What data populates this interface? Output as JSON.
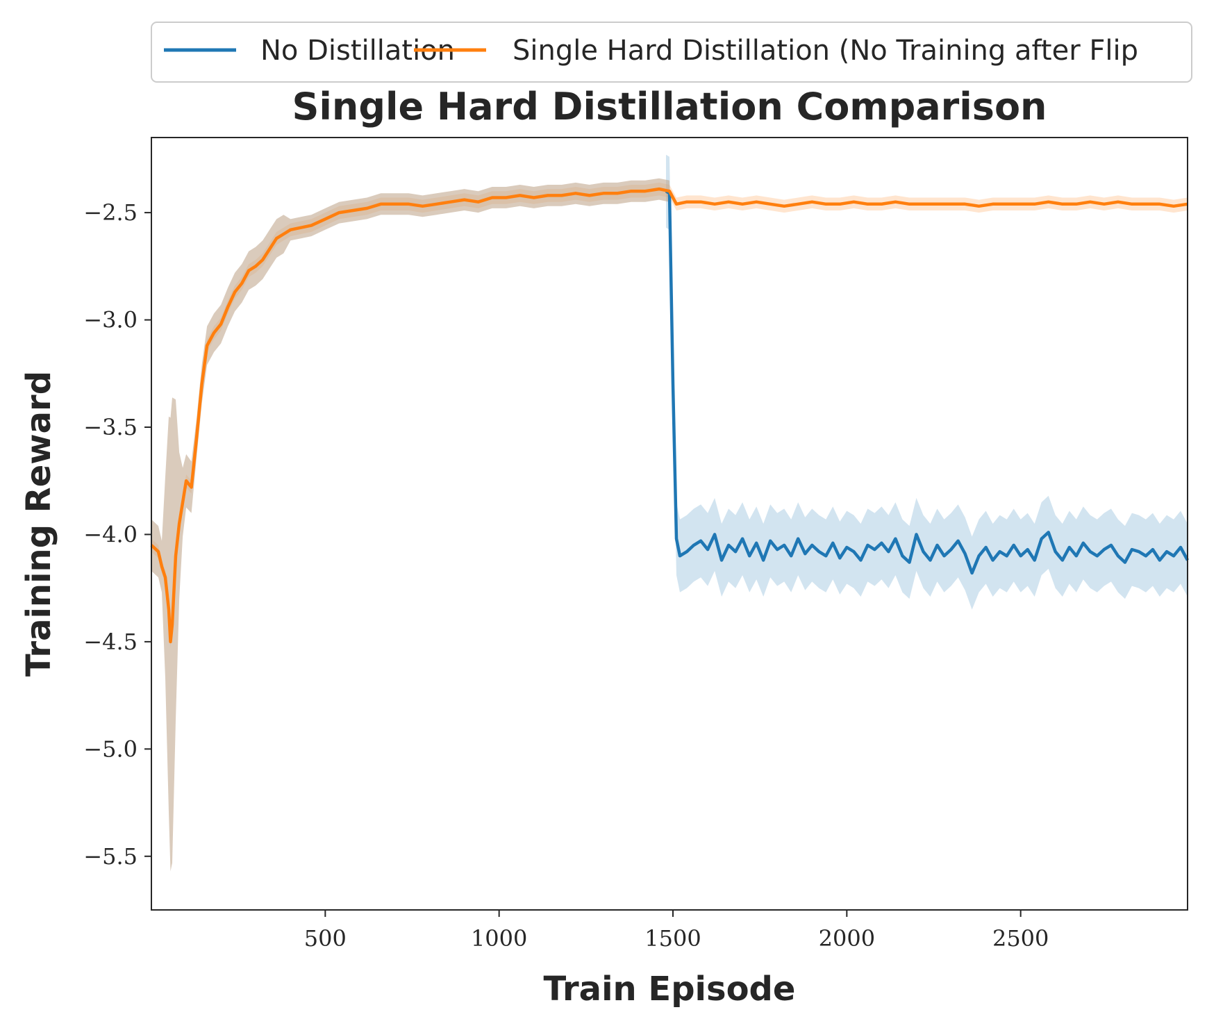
{
  "chart_data": {
    "type": "line",
    "title": "Single Hard Distillation Comparison",
    "xlabel": "Train Episode",
    "ylabel": "Training Reward",
    "xlim": [
      0,
      2980
    ],
    "ylim": [
      -5.75,
      -2.15
    ],
    "xticks": [
      500,
      1000,
      1500,
      2000,
      2500
    ],
    "xtick_labels": [
      "500",
      "1000",
      "1500",
      "2000",
      "2500"
    ],
    "yticks": [
      -2.5,
      -3.0,
      -3.5,
      -4.0,
      -4.5,
      -5.0,
      -5.5
    ],
    "ytick_labels": [
      "−2.5",
      "−3.0",
      "−3.5",
      "−4.0",
      "−4.5",
      "−5.0",
      "−5.5"
    ],
    "grid": false,
    "legend_position": "top, above plot",
    "series": [
      {
        "name": "No Distillation",
        "color": "#1f77b4",
        "band_color": "#1f77b4",
        "points": [
          [
            1480,
            -2.4
          ],
          [
            1490,
            -2.41
          ],
          [
            1500,
            -3.3
          ],
          [
            1510,
            -4.02
          ],
          [
            1520,
            -4.1
          ],
          [
            1540,
            -4.08
          ],
          [
            1560,
            -4.05
          ],
          [
            1580,
            -4.03
          ],
          [
            1600,
            -4.07
          ],
          [
            1620,
            -4.0
          ],
          [
            1640,
            -4.12
          ],
          [
            1660,
            -4.05
          ],
          [
            1680,
            -4.08
          ],
          [
            1700,
            -4.02
          ],
          [
            1720,
            -4.1
          ],
          [
            1740,
            -4.04
          ],
          [
            1760,
            -4.12
          ],
          [
            1780,
            -4.03
          ],
          [
            1800,
            -4.07
          ],
          [
            1820,
            -4.05
          ],
          [
            1840,
            -4.1
          ],
          [
            1860,
            -4.02
          ],
          [
            1880,
            -4.09
          ],
          [
            1900,
            -4.05
          ],
          [
            1920,
            -4.08
          ],
          [
            1940,
            -4.1
          ],
          [
            1960,
            -4.04
          ],
          [
            1980,
            -4.11
          ],
          [
            2000,
            -4.06
          ],
          [
            2020,
            -4.08
          ],
          [
            2040,
            -4.12
          ],
          [
            2060,
            -4.05
          ],
          [
            2080,
            -4.07
          ],
          [
            2100,
            -4.04
          ],
          [
            2120,
            -4.08
          ],
          [
            2140,
            -4.02
          ],
          [
            2160,
            -4.1
          ],
          [
            2180,
            -4.13
          ],
          [
            2200,
            -4.0
          ],
          [
            2220,
            -4.08
          ],
          [
            2240,
            -4.12
          ],
          [
            2260,
            -4.05
          ],
          [
            2280,
            -4.1
          ],
          [
            2300,
            -4.07
          ],
          [
            2320,
            -4.03
          ],
          [
            2340,
            -4.09
          ],
          [
            2360,
            -4.18
          ],
          [
            2380,
            -4.1
          ],
          [
            2400,
            -4.06
          ],
          [
            2420,
            -4.12
          ],
          [
            2440,
            -4.08
          ],
          [
            2460,
            -4.1
          ],
          [
            2480,
            -4.05
          ],
          [
            2500,
            -4.1
          ],
          [
            2520,
            -4.07
          ],
          [
            2540,
            -4.12
          ],
          [
            2560,
            -4.02
          ],
          [
            2580,
            -3.99
          ],
          [
            2600,
            -4.08
          ],
          [
            2620,
            -4.12
          ],
          [
            2640,
            -4.06
          ],
          [
            2660,
            -4.1
          ],
          [
            2680,
            -4.04
          ],
          [
            2700,
            -4.08
          ],
          [
            2720,
            -4.1
          ],
          [
            2740,
            -4.07
          ],
          [
            2760,
            -4.05
          ],
          [
            2780,
            -4.1
          ],
          [
            2800,
            -4.13
          ],
          [
            2820,
            -4.07
          ],
          [
            2840,
            -4.08
          ],
          [
            2860,
            -4.1
          ],
          [
            2880,
            -4.07
          ],
          [
            2900,
            -4.12
          ],
          [
            2920,
            -4.08
          ],
          [
            2940,
            -4.1
          ],
          [
            2960,
            -4.06
          ],
          [
            2980,
            -4.12
          ]
        ],
        "band_halfwidth": 0.17
      },
      {
        "name": "Single Hard Distillation (No Training after Flip",
        "color": "#ff7f0e",
        "band_color": "#ff7f0e",
        "points": [
          [
            0,
            -4.05
          ],
          [
            20,
            -4.08
          ],
          [
            30,
            -4.15
          ],
          [
            40,
            -4.2
          ],
          [
            50,
            -4.35
          ],
          [
            55,
            -4.5
          ],
          [
            60,
            -4.42
          ],
          [
            70,
            -4.1
          ],
          [
            80,
            -3.95
          ],
          [
            90,
            -3.85
          ],
          [
            100,
            -3.75
          ],
          [
            115,
            -3.78
          ],
          [
            130,
            -3.55
          ],
          [
            145,
            -3.3
          ],
          [
            160,
            -3.12
          ],
          [
            180,
            -3.06
          ],
          [
            200,
            -3.02
          ],
          [
            220,
            -2.94
          ],
          [
            240,
            -2.87
          ],
          [
            260,
            -2.83
          ],
          [
            280,
            -2.77
          ],
          [
            300,
            -2.75
          ],
          [
            320,
            -2.72
          ],
          [
            340,
            -2.67
          ],
          [
            360,
            -2.62
          ],
          [
            380,
            -2.6
          ],
          [
            400,
            -2.58
          ],
          [
            430,
            -2.57
          ],
          [
            460,
            -2.56
          ],
          [
            500,
            -2.53
          ],
          [
            540,
            -2.5
          ],
          [
            580,
            -2.49
          ],
          [
            620,
            -2.48
          ],
          [
            660,
            -2.46
          ],
          [
            700,
            -2.46
          ],
          [
            740,
            -2.46
          ],
          [
            780,
            -2.47
          ],
          [
            820,
            -2.46
          ],
          [
            860,
            -2.45
          ],
          [
            900,
            -2.44
          ],
          [
            940,
            -2.45
          ],
          [
            980,
            -2.43
          ],
          [
            1020,
            -2.43
          ],
          [
            1060,
            -2.42
          ],
          [
            1100,
            -2.43
          ],
          [
            1140,
            -2.42
          ],
          [
            1180,
            -2.42
          ],
          [
            1220,
            -2.41
          ],
          [
            1260,
            -2.42
          ],
          [
            1300,
            -2.41
          ],
          [
            1340,
            -2.41
          ],
          [
            1380,
            -2.4
          ],
          [
            1420,
            -2.4
          ],
          [
            1460,
            -2.39
          ],
          [
            1490,
            -2.4
          ],
          [
            1510,
            -2.46
          ],
          [
            1540,
            -2.45
          ],
          [
            1580,
            -2.45
          ],
          [
            1620,
            -2.46
          ],
          [
            1660,
            -2.45
          ],
          [
            1700,
            -2.46
          ],
          [
            1740,
            -2.45
          ],
          [
            1780,
            -2.46
          ],
          [
            1820,
            -2.47
          ],
          [
            1860,
            -2.46
          ],
          [
            1900,
            -2.45
          ],
          [
            1940,
            -2.46
          ],
          [
            1980,
            -2.46
          ],
          [
            2020,
            -2.45
          ],
          [
            2060,
            -2.46
          ],
          [
            2100,
            -2.46
          ],
          [
            2140,
            -2.45
          ],
          [
            2180,
            -2.46
          ],
          [
            2220,
            -2.46
          ],
          [
            2260,
            -2.46
          ],
          [
            2300,
            -2.46
          ],
          [
            2340,
            -2.46
          ],
          [
            2380,
            -2.47
          ],
          [
            2420,
            -2.46
          ],
          [
            2460,
            -2.46
          ],
          [
            2500,
            -2.46
          ],
          [
            2540,
            -2.46
          ],
          [
            2580,
            -2.45
          ],
          [
            2620,
            -2.46
          ],
          [
            2660,
            -2.46
          ],
          [
            2700,
            -2.45
          ],
          [
            2740,
            -2.46
          ],
          [
            2780,
            -2.45
          ],
          [
            2820,
            -2.46
          ],
          [
            2860,
            -2.46
          ],
          [
            2900,
            -2.46
          ],
          [
            2940,
            -2.47
          ],
          [
            2980,
            -2.46
          ]
        ],
        "band_halfwidth": 0.03
      }
    ],
    "shared_early_band": {
      "color": "#c2a88f",
      "x_end": 1490,
      "min_at_dip": -5.57
    }
  }
}
